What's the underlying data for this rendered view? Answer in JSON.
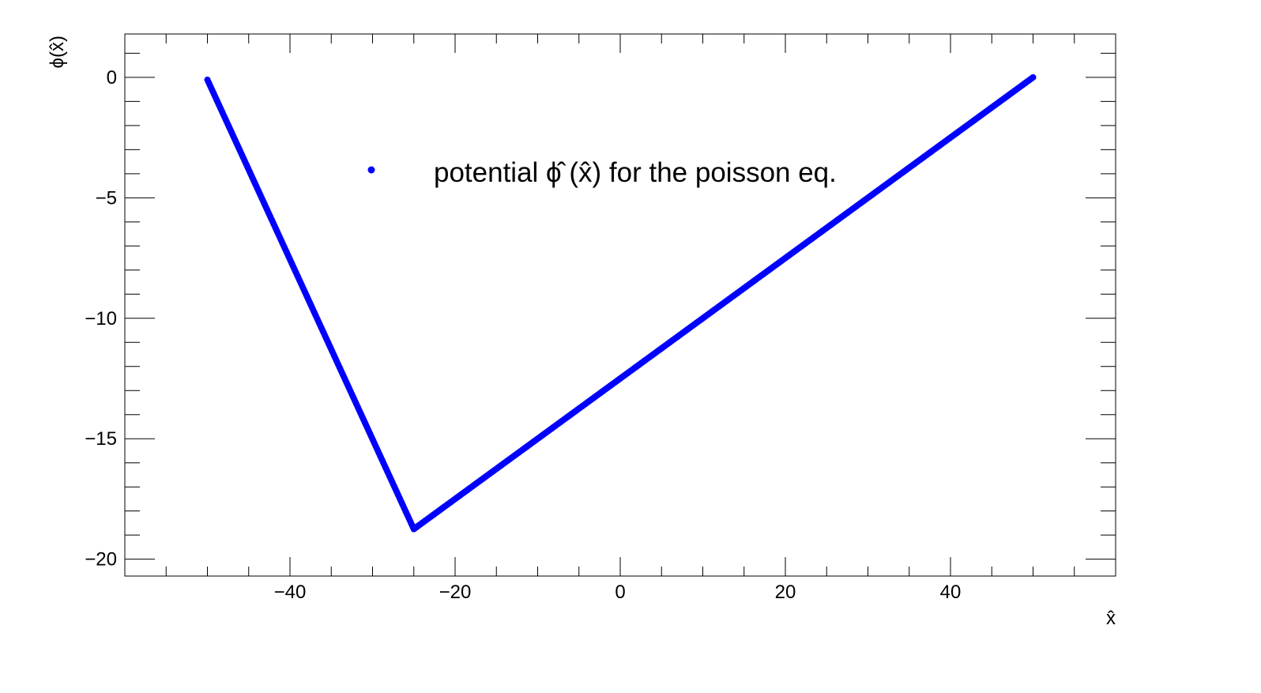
{
  "chart_data": {
    "type": "scatter",
    "title": "",
    "xlabel": "x̂",
    "ylabel": "ϕ(x̂)",
    "xlim": [
      -60,
      60
    ],
    "ylim": [
      -20.7,
      1.8
    ],
    "x_ticks": [
      -40,
      -20,
      0,
      20,
      40
    ],
    "x_tick_labels": [
      "−40",
      "−20",
      "0",
      "20",
      "40"
    ],
    "y_ticks": [
      0,
      -5,
      -10,
      -15,
      -20
    ],
    "y_tick_labels": [
      "0",
      "−5",
      "−10",
      "−15",
      "−20"
    ],
    "grid": false,
    "legend": {
      "placement": "top-center",
      "entries": [
        "potential ϕ̂ (x̂) for the poisson eq."
      ]
    },
    "series": [
      {
        "name": "potential ϕ̂ (x̂) for the poisson eq.",
        "color": "#0000ff",
        "segments": [
          {
            "x": [
              -50,
              -25
            ],
            "y": [
              -0.1,
              -18.75
            ]
          },
          {
            "x": [
              -25,
              50
            ],
            "y": [
              -18.75,
              0
            ]
          }
        ],
        "n_points": 1000
      }
    ]
  }
}
